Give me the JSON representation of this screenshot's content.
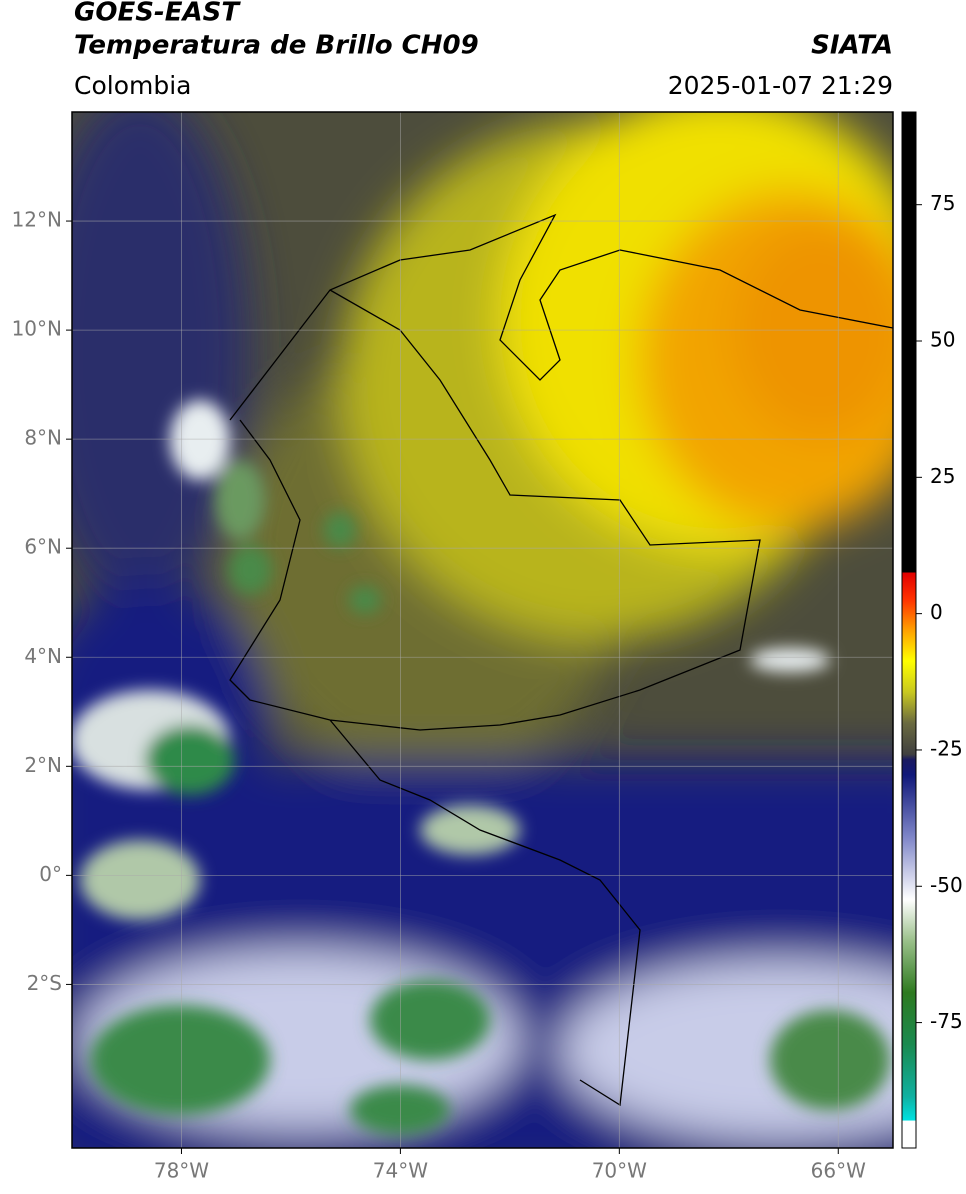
{
  "header": {
    "title": "GOES-EAST",
    "subtitle": "Temperatura de Brillo CH09",
    "source": "SIATA",
    "region": "Colombia",
    "datetime": "2025-01-07 21:29"
  },
  "map": {
    "xlim": [
      -80,
      -65
    ],
    "ylim": [
      -5,
      14
    ],
    "xticks": [
      {
        "value": -78,
        "label": "78°W"
      },
      {
        "value": -74,
        "label": "74°W"
      },
      {
        "value": -70,
        "label": "70°W"
      },
      {
        "value": -66,
        "label": "66°W"
      }
    ],
    "yticks": [
      {
        "value": 12,
        "label": "12°N"
      },
      {
        "value": 10,
        "label": "10°N"
      },
      {
        "value": 8,
        "label": "8°N"
      },
      {
        "value": 6,
        "label": "6°N"
      },
      {
        "value": 4,
        "label": "4°N"
      },
      {
        "value": 2,
        "label": "2°N"
      },
      {
        "value": 0,
        "label": "0°"
      },
      {
        "value": -2,
        "label": "2°S"
      }
    ],
    "grid": true
  },
  "colorbar": {
    "lim": [
      -98,
      92
    ],
    "ticks": [
      75,
      50,
      25,
      0,
      -25,
      -50,
      -75
    ]
  }
}
